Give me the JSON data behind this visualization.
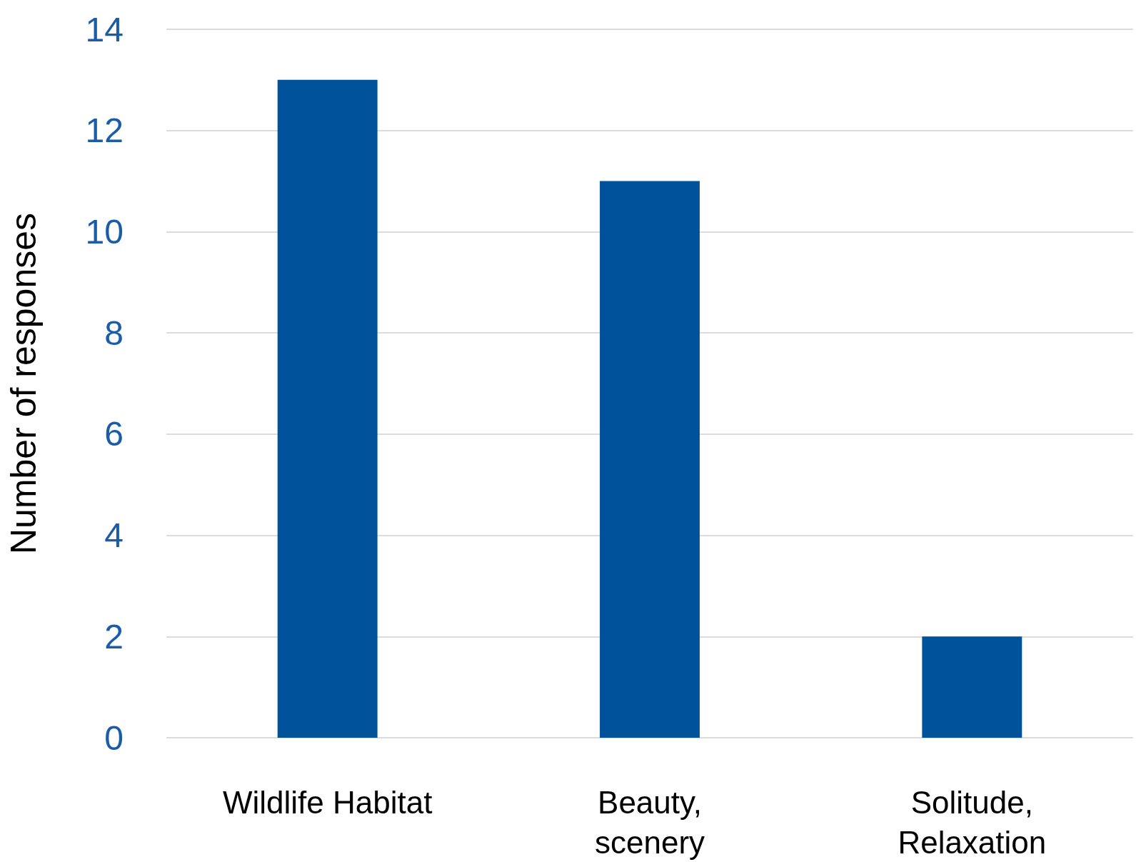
{
  "chart_data": {
    "type": "bar",
    "ylabel": "Number of responses",
    "categories": [
      "Wildlife Habitat",
      "Beauty, scenery",
      "Solitude, Relaxation"
    ],
    "values": [
      13,
      11,
      2
    ],
    "color": "#00529b",
    "ylim": [
      0,
      14
    ],
    "yticks": [
      0,
      2,
      4,
      6,
      8,
      10,
      12,
      14
    ],
    "grid": "y"
  }
}
